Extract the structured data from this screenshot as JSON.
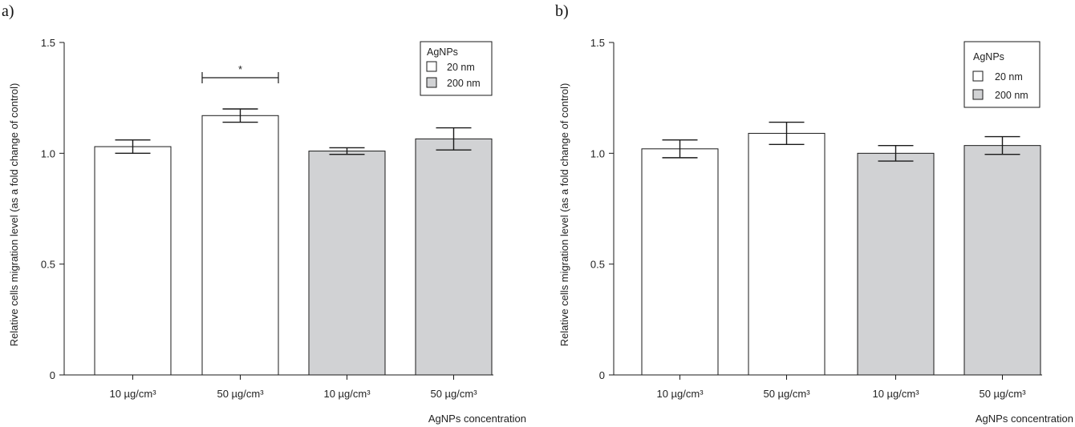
{
  "colors": {
    "white_fill": "#ffffff",
    "gray_fill": "#d1d2d4",
    "stroke": "#1a1a1a"
  },
  "chart_data": [
    {
      "panel_label": "a)",
      "type": "bar",
      "categories": [
        "10 µg/cm³",
        "50 µg/cm³",
        "10 µg/cm³",
        "50 µg/cm³"
      ],
      "values": [
        1.03,
        1.17,
        1.01,
        1.065
      ],
      "errors": [
        0.03,
        0.03,
        0.015,
        0.05
      ],
      "fills": [
        "#ffffff",
        "#ffffff",
        "#d1d2d4",
        "#d1d2d4"
      ],
      "ylabel": "Relative cells migration level (as a fold change of control)",
      "xlabel": "AgNPs concentration",
      "ylim": [
        0,
        1.5
      ],
      "yticks": [
        0,
        0.5,
        1.0,
        1.5
      ],
      "ytick_labels": [
        "0",
        "0.5",
        "1.0",
        "1.5"
      ],
      "legend": {
        "title": "AgNPs",
        "position": "top-right",
        "items": [
          {
            "label": "20 nm",
            "fill": "#ffffff"
          },
          {
            "label": "200 nm",
            "fill": "#d1d2d4"
          }
        ]
      },
      "significance": {
        "between": [
          0,
          1
        ],
        "symbol": "*"
      }
    },
    {
      "panel_label": "b)",
      "type": "bar",
      "categories": [
        "10 µg/cm³",
        "50 µg/cm³",
        "10 µg/cm³",
        "50 µg/cm³"
      ],
      "values": [
        1.02,
        1.09,
        1.0,
        1.035
      ],
      "errors": [
        0.04,
        0.05,
        0.035,
        0.04
      ],
      "fills": [
        "#ffffff",
        "#ffffff",
        "#d1d2d4",
        "#d1d2d4"
      ],
      "ylabel": "Relative cells migration level (as a fold change of control)",
      "xlabel": "AgNPs concentration",
      "ylim": [
        0,
        1.5
      ],
      "yticks": [
        0,
        0.5,
        1.0,
        1.5
      ],
      "ytick_labels": [
        "0",
        "0.5",
        "1.0",
        "1.5"
      ],
      "legend": {
        "title": "AgNPs",
        "position": "top-right",
        "items": [
          {
            "label": "20 nm",
            "fill": "#ffffff"
          },
          {
            "label": "200 nm",
            "fill": "#d1d2d4"
          }
        ]
      }
    }
  ]
}
